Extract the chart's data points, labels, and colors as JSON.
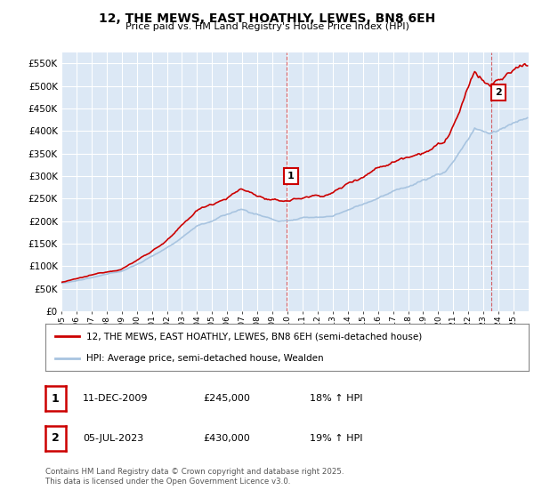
{
  "title": "12, THE MEWS, EAST HOATHLY, LEWES, BN8 6EH",
  "subtitle": "Price paid vs. HM Land Registry's House Price Index (HPI)",
  "ylim": [
    0,
    575000
  ],
  "yticks": [
    0,
    50000,
    100000,
    150000,
    200000,
    250000,
    300000,
    350000,
    400000,
    450000,
    500000,
    550000
  ],
  "year_start": 1995,
  "year_end": 2026,
  "red_color": "#cc0000",
  "blue_color": "#a8c4e0",
  "bg_color": "#dce8f5",
  "grid_color": "#ffffff",
  "sale1_year": 2009.92,
  "sale1_value": 245000,
  "sale2_year": 2023.5,
  "sale2_value": 430000,
  "legend_line1": "12, THE MEWS, EAST HOATHLY, LEWES, BN8 6EH (semi-detached house)",
  "legend_line2": "HPI: Average price, semi-detached house, Wealden",
  "table_row1": [
    "1",
    "11-DEC-2009",
    "£245,000",
    "18% ↑ HPI"
  ],
  "table_row2": [
    "2",
    "05-JUL-2023",
    "£430,000",
    "19% ↑ HPI"
  ],
  "footer": "Contains HM Land Registry data © Crown copyright and database right 2025.\nThis data is licensed under the Open Government Licence v3.0."
}
